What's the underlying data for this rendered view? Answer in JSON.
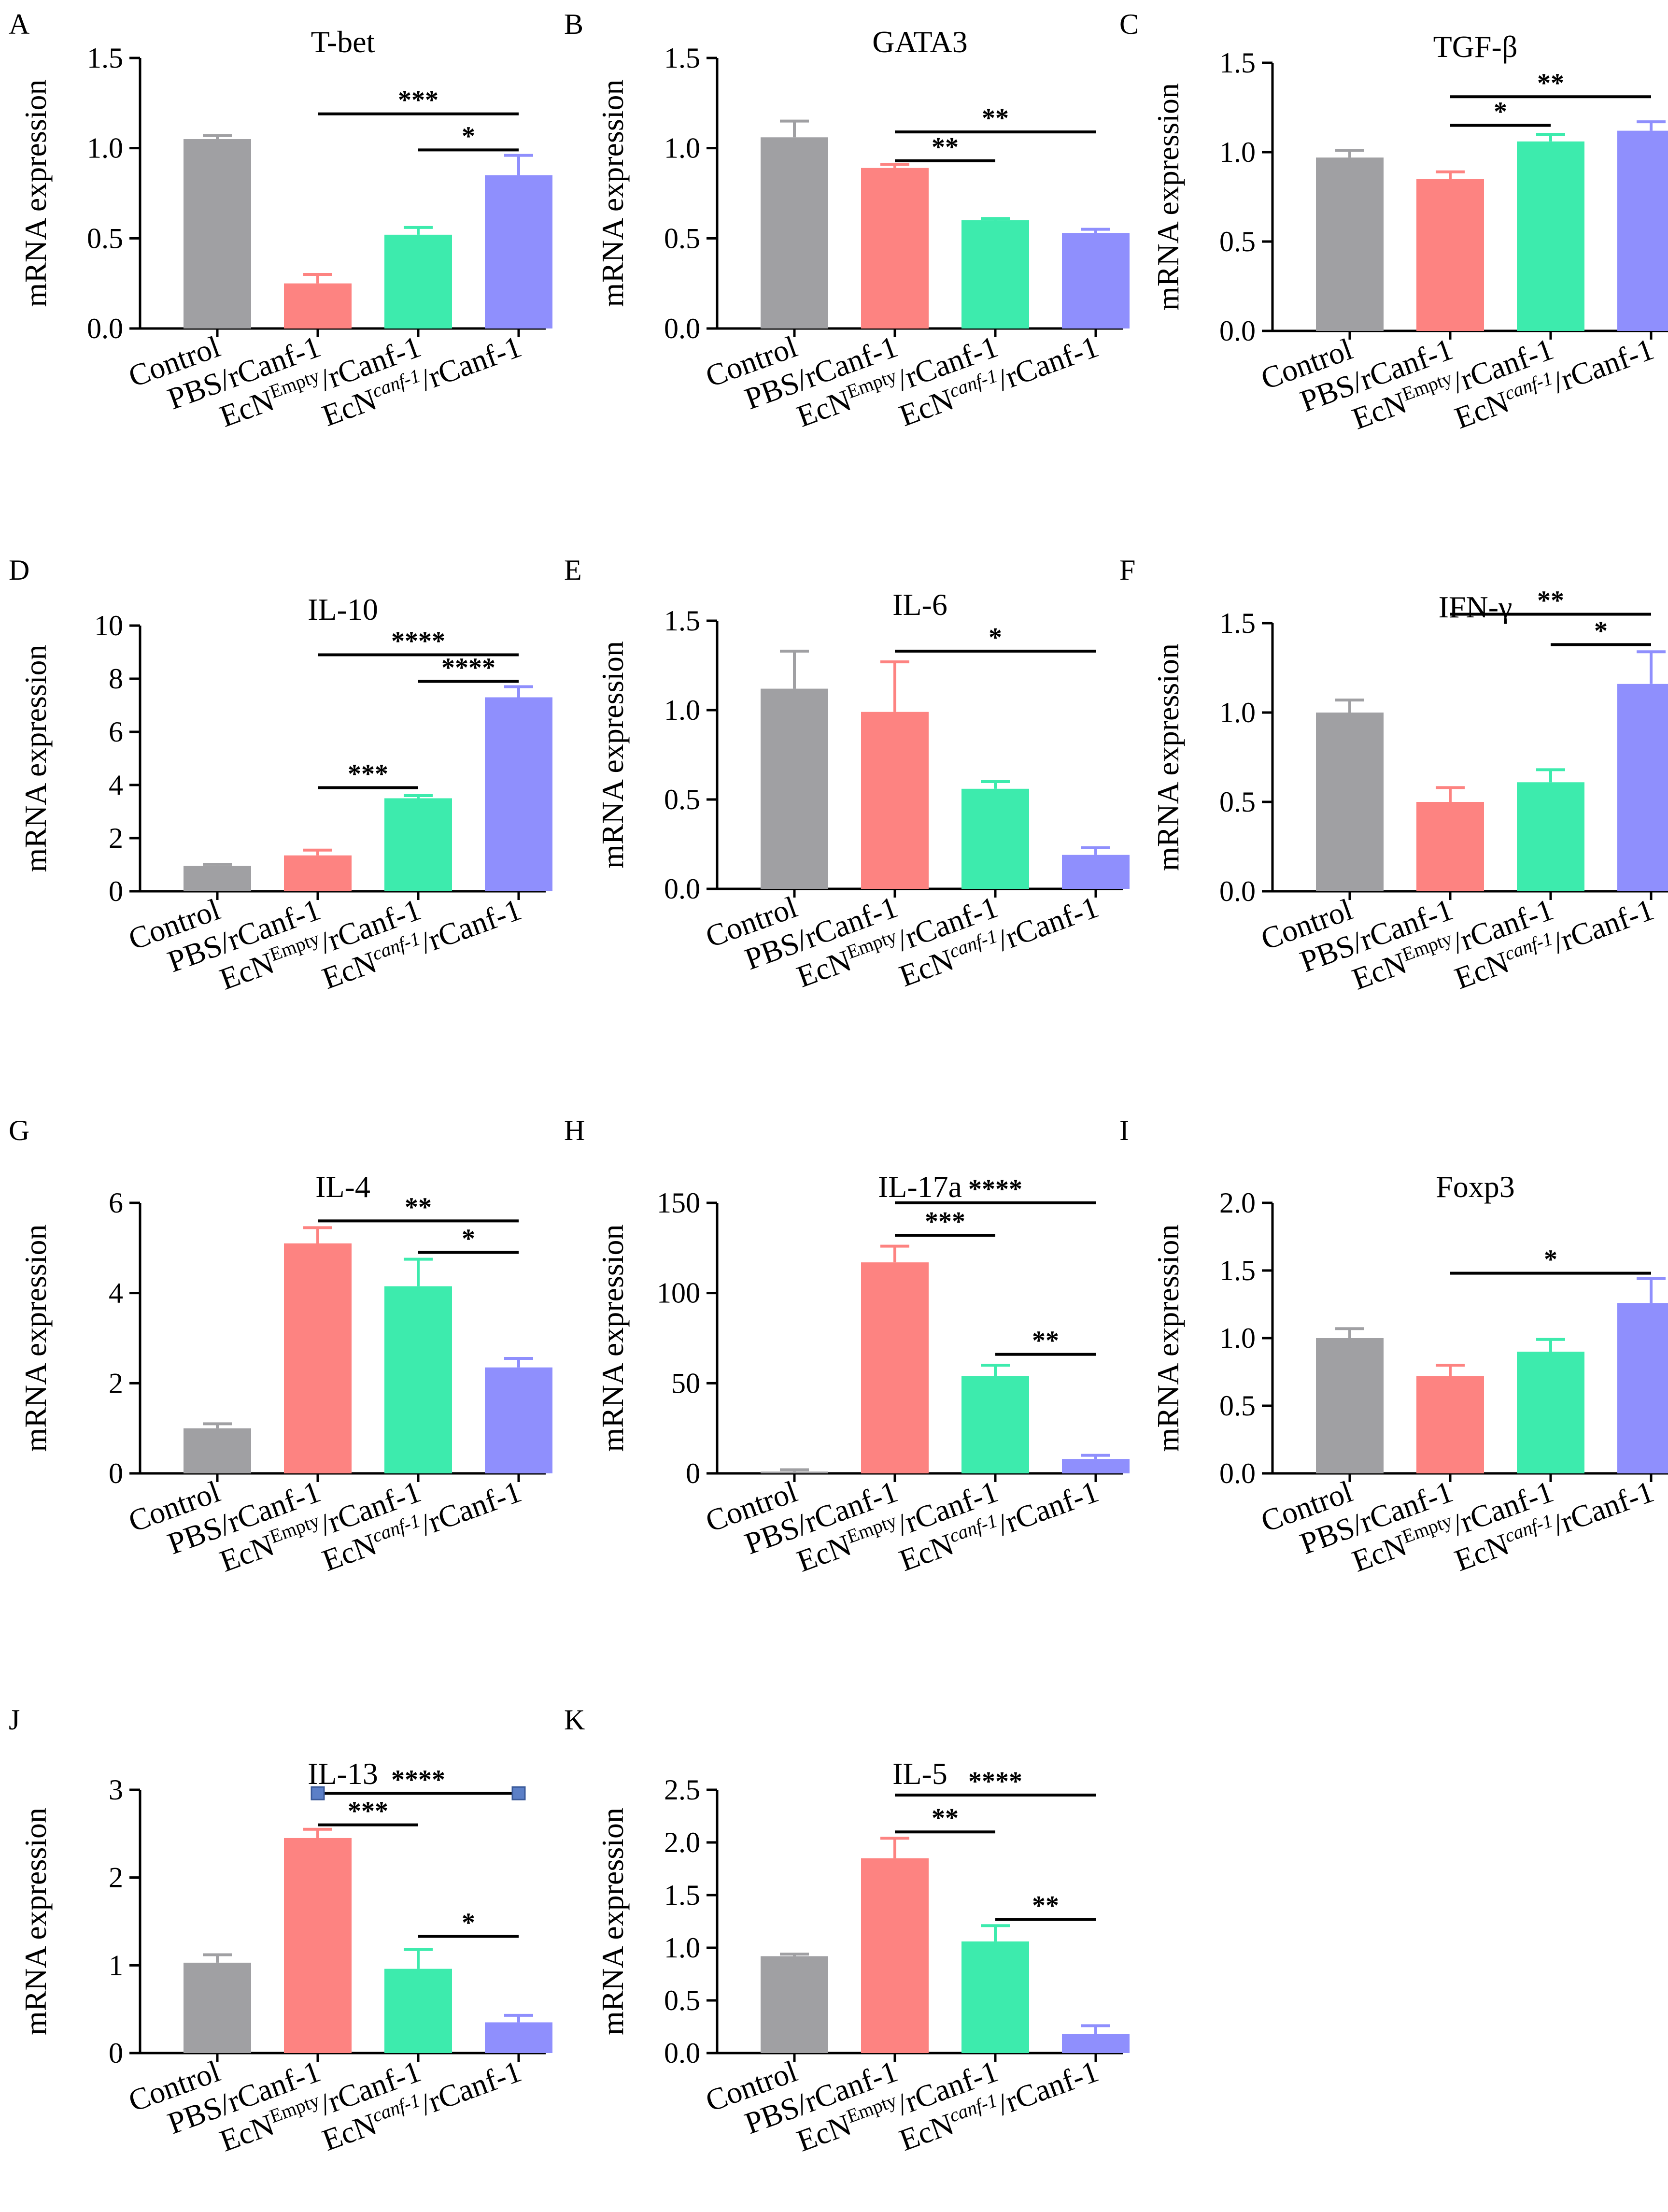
{
  "colors": {
    "Control": "#a0a0a3",
    "PBS": "#fd8381",
    "EcNEmpty": "#3debad",
    "EcNcanf": "#8f8ffd"
  },
  "categories": [
    {
      "base": "Control",
      "sup": "",
      "suffix": ""
    },
    {
      "base": "PBS/rCanf-1",
      "sup": "",
      "suffix": ""
    },
    {
      "base": "EcN",
      "sup": "Empty",
      "suffix": "/rCanf-1"
    },
    {
      "base": "EcN",
      "sup": "canf-1",
      "suffix": "/rCanf-1"
    }
  ],
  "ylabel": "mRNA expression",
  "chart_data": [
    {
      "type": "bar",
      "panel": "A",
      "title": "T-bet",
      "ylabel": "mRNA expression",
      "ylim": [
        0,
        1.5
      ],
      "yticks": [
        "0.0",
        "0.5",
        "1.0",
        "1.5"
      ],
      "values": [
        1.05,
        0.25,
        0.52,
        0.85
      ],
      "errors": [
        0.02,
        0.05,
        0.04,
        0.11
      ],
      "significance": [
        {
          "from": 1,
          "to": 3,
          "label": "***",
          "y": 1.19
        },
        {
          "from": 2,
          "to": 3,
          "label": "*",
          "y": 0.99
        }
      ]
    },
    {
      "type": "bar",
      "panel": "B",
      "title": "GATA3",
      "ylabel": "mRNA expression",
      "ylim": [
        0,
        1.5
      ],
      "yticks": [
        "0.0",
        "0.5",
        "1.0",
        "1.5"
      ],
      "values": [
        1.06,
        0.89,
        0.6,
        0.53
      ],
      "errors": [
        0.09,
        0.02,
        0.01,
        0.02
      ],
      "significance": [
        {
          "from": 1,
          "to": 3,
          "label": "**",
          "y": 1.09
        },
        {
          "from": 1,
          "to": 2,
          "label": "**",
          "y": 0.93
        }
      ]
    },
    {
      "type": "bar",
      "panel": "C",
      "title": "TGF-β",
      "ylabel": "mRNA expression",
      "ylim": [
        0,
        1.5
      ],
      "yticks": [
        "0.0",
        "0.5",
        "1.0",
        "1.5"
      ],
      "values": [
        0.97,
        0.85,
        1.06,
        1.12
      ],
      "errors": [
        0.04,
        0.04,
        0.04,
        0.05
      ],
      "significance": [
        {
          "from": 1,
          "to": 3,
          "label": "**",
          "y": 1.31
        },
        {
          "from": 1,
          "to": 2,
          "label": "*",
          "y": 1.15
        }
      ]
    },
    {
      "type": "bar",
      "panel": "D",
      "title": "IL-10",
      "ylabel": "mRNA expression",
      "ylim": [
        0,
        10
      ],
      "yticks": [
        "0",
        "2",
        "4",
        "6",
        "8",
        "10"
      ],
      "values": [
        0.95,
        1.35,
        3.5,
        7.3
      ],
      "errors": [
        0.06,
        0.2,
        0.1,
        0.4
      ],
      "significance": [
        {
          "from": 1,
          "to": 3,
          "label": "****",
          "y": 8.9
        },
        {
          "from": 2,
          "to": 3,
          "label": "****",
          "y": 7.9
        },
        {
          "from": 1,
          "to": 2,
          "label": "***",
          "y": 3.9
        }
      ]
    },
    {
      "type": "bar",
      "panel": "E",
      "title": "IL-6",
      "ylabel": "mRNA expression",
      "ylim": [
        0,
        1.5
      ],
      "yticks": [
        "0.0",
        "0.5",
        "1.0",
        "1.5"
      ],
      "values": [
        1.12,
        0.99,
        0.56,
        0.19
      ],
      "errors": [
        0.21,
        0.28,
        0.04,
        0.04
      ],
      "significance": [
        {
          "from": 1,
          "to": 3,
          "label": "*",
          "y": 1.33
        }
      ]
    },
    {
      "type": "bar",
      "panel": "F",
      "title": "IFN-γ",
      "ylabel": "mRNA expression",
      "ylim": [
        0,
        1.5
      ],
      "yticks": [
        "0.0",
        "0.5",
        "1.0",
        "1.5"
      ],
      "values": [
        1.0,
        0.5,
        0.61,
        1.16
      ],
      "errors": [
        0.07,
        0.08,
        0.07,
        0.18
      ],
      "significance": [
        {
          "from": 1,
          "to": 3,
          "label": "**",
          "y": 1.55
        },
        {
          "from": 2,
          "to": 3,
          "label": "*",
          "y": 1.38
        }
      ]
    },
    {
      "type": "bar",
      "panel": "G",
      "title": "IL-4",
      "ylabel": "mRNA expression",
      "ylim": [
        0,
        6
      ],
      "yticks": [
        "0",
        "2",
        "4",
        "6"
      ],
      "values": [
        1.0,
        5.1,
        4.15,
        2.35
      ],
      "errors": [
        0.1,
        0.35,
        0.6,
        0.2
      ],
      "significance": [
        {
          "from": 1,
          "to": 3,
          "label": "**",
          "y": 5.6
        },
        {
          "from": 2,
          "to": 3,
          "label": "*",
          "y": 4.9
        }
      ]
    },
    {
      "type": "bar",
      "panel": "H",
      "title": "IL-17a",
      "ylabel": "mRNA expression",
      "ylim": [
        0,
        150
      ],
      "yticks": [
        "0",
        "50",
        "100",
        "150"
      ],
      "values": [
        1,
        117,
        54,
        8
      ],
      "errors": [
        1,
        9,
        6,
        2
      ],
      "significance": [
        {
          "from": 1,
          "to": 3,
          "label": "****",
          "y": 150
        },
        {
          "from": 1,
          "to": 2,
          "label": "***",
          "y": 132
        },
        {
          "from": 2,
          "to": 3,
          "label": "**",
          "y": 66
        }
      ]
    },
    {
      "type": "bar",
      "panel": "I",
      "title": "Foxp3",
      "ylabel": "mRNA expression",
      "ylim": [
        0,
        2.0
      ],
      "yticks": [
        "0.0",
        "0.5",
        "1.0",
        "1.5",
        "2.0"
      ],
      "values": [
        1.0,
        0.72,
        0.9,
        1.26
      ],
      "errors": [
        0.07,
        0.08,
        0.09,
        0.18
      ],
      "significance": [
        {
          "from": 1,
          "to": 3,
          "label": "*",
          "y": 1.48
        }
      ]
    },
    {
      "type": "bar",
      "panel": "J",
      "title": "IL-13",
      "ylabel": "mRNA expression",
      "ylim": [
        0,
        3
      ],
      "yticks": [
        "0",
        "1",
        "2",
        "3"
      ],
      "values": [
        1.03,
        2.45,
        0.96,
        0.35
      ],
      "errors": [
        0.09,
        0.1,
        0.22,
        0.08
      ],
      "significance": [
        {
          "from": 1,
          "to": 3,
          "label": "****",
          "y": 2.96,
          "endpoints": true
        },
        {
          "from": 1,
          "to": 2,
          "label": "***",
          "y": 2.6
        },
        {
          "from": 2,
          "to": 3,
          "label": "*",
          "y": 1.33
        }
      ]
    },
    {
      "type": "bar",
      "panel": "K",
      "title": "IL-5",
      "ylabel": "mRNA expression",
      "ylim": [
        0,
        2.5
      ],
      "yticks": [
        "0.0",
        "0.5",
        "1.0",
        "1.5",
        "2.0",
        "2.5"
      ],
      "values": [
        0.92,
        1.85,
        1.06,
        0.18
      ],
      "errors": [
        0.02,
        0.19,
        0.15,
        0.08
      ],
      "significance": [
        {
          "from": 1,
          "to": 3,
          "label": "****",
          "y": 2.45
        },
        {
          "from": 1,
          "to": 2,
          "label": "**",
          "y": 2.1
        },
        {
          "from": 2,
          "to": 3,
          "label": "**",
          "y": 1.27
        }
      ]
    }
  ]
}
